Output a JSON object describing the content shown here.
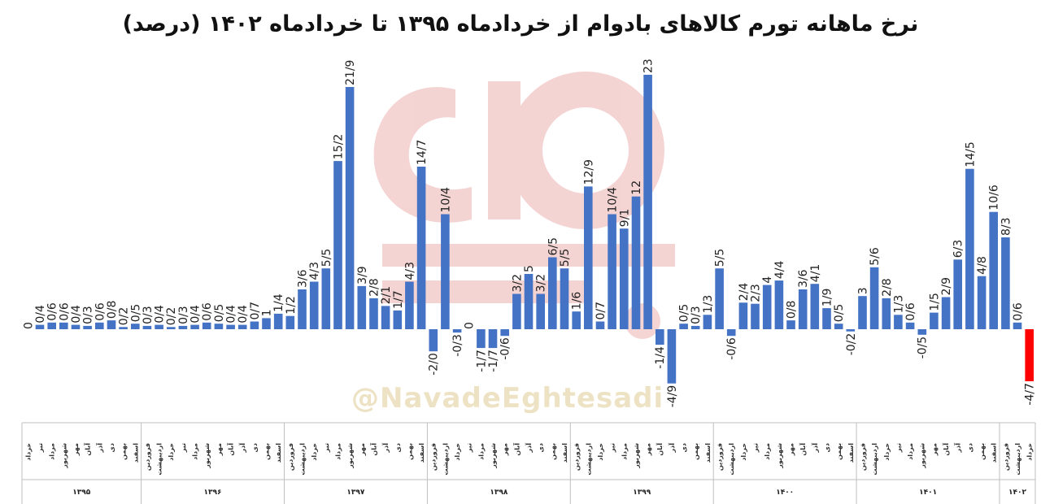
{
  "title": "نرخ ماهانه تورم کالاهای بادوام از خردادماه ۱۳۹۵ تا خردادماه ۱۴۰۲ (درصد)",
  "watermark": "@NavadeEghtesadi",
  "colors": {
    "positive": "#4472c4",
    "highlight": "#ff0000",
    "watermark": "#e8a0a0"
  },
  "chart_data": {
    "type": "bar",
    "title": "نرخ ماهانه تورم کالاهای بادوام از خردادماه ۱۳۹۵ تا خردادماه ۱۴۰۲ (درصد)",
    "xlabel": "",
    "ylabel": "",
    "ylim": [
      -5,
      23
    ],
    "grid": false,
    "legend": "none",
    "bars": [
      {
        "label": "0",
        "value": 0
      },
      {
        "label": "0/4",
        "value": 0.4
      },
      {
        "label": "0/6",
        "value": 0.6
      },
      {
        "label": "0/6",
        "value": 0.6
      },
      {
        "label": "0/4",
        "value": 0.4
      },
      {
        "label": "0/3",
        "value": 0.3
      },
      {
        "label": "0/6",
        "value": 0.6
      },
      {
        "label": "0/8",
        "value": 0.8
      },
      {
        "label": "0/2",
        "value": 0.2
      },
      {
        "label": "0/5",
        "value": 0.5
      },
      {
        "label": "0/3",
        "value": 0.3
      },
      {
        "label": "0/4",
        "value": 0.4
      },
      {
        "label": "0/2",
        "value": 0.2
      },
      {
        "label": "0/3",
        "value": 0.3
      },
      {
        "label": "0/4",
        "value": 0.4
      },
      {
        "label": "0/6",
        "value": 0.6
      },
      {
        "label": "0/5",
        "value": 0.5
      },
      {
        "label": "0/4",
        "value": 0.4
      },
      {
        "label": "0/4",
        "value": 0.4
      },
      {
        "label": "0/7",
        "value": 0.7
      },
      {
        "label": "1",
        "value": 1.0
      },
      {
        "label": "1/4",
        "value": 1.4
      },
      {
        "label": "1/2",
        "value": 1.2
      },
      {
        "label": "3/6",
        "value": 3.6
      },
      {
        "label": "4/3",
        "value": 4.3
      },
      {
        "label": "5/5",
        "value": 5.5
      },
      {
        "label": "15/2",
        "value": 15.2
      },
      {
        "label": "21/9",
        "value": 21.9
      },
      {
        "label": "3/9",
        "value": 3.9
      },
      {
        "label": "2/8",
        "value": 2.8
      },
      {
        "label": "2/1",
        "value": 2.1
      },
      {
        "label": "1/7",
        "value": 1.7
      },
      {
        "label": "4/3",
        "value": 4.3
      },
      {
        "label": "14/7",
        "value": 14.7
      },
      {
        "label": "-2/0",
        "value": -2.0
      },
      {
        "label": "10/4",
        "value": 10.4
      },
      {
        "label": "-0/3",
        "value": -0.3
      },
      {
        "label": "0",
        "value": 0
      },
      {
        "label": "-1/7",
        "value": -1.7
      },
      {
        "label": "-1/7",
        "value": -1.7
      },
      {
        "label": "-0/6",
        "value": -0.6
      },
      {
        "label": "3/2",
        "value": 3.2
      },
      {
        "label": "5",
        "value": 5.0
      },
      {
        "label": "3/2",
        "value": 3.2
      },
      {
        "label": "6/5",
        "value": 6.5
      },
      {
        "label": "5/5",
        "value": 5.5
      },
      {
        "label": "1/6",
        "value": 1.6
      },
      {
        "label": "12/9",
        "value": 12.9
      },
      {
        "label": "0/7",
        "value": 0.7
      },
      {
        "label": "10/4",
        "value": 10.4
      },
      {
        "label": "9/1",
        "value": 9.1
      },
      {
        "label": "12",
        "value": 12.0
      },
      {
        "label": "23",
        "value": 23.0
      },
      {
        "label": "-1/4",
        "value": -1.4
      },
      {
        "label": "-4/9",
        "value": -4.9
      },
      {
        "label": "0/5",
        "value": 0.5
      },
      {
        "label": "0/3",
        "value": 0.3
      },
      {
        "label": "1/3",
        "value": 1.3
      },
      {
        "label": "5/5",
        "value": 5.5
      },
      {
        "label": "-0/6",
        "value": -0.6
      },
      {
        "label": "2/4",
        "value": 2.4
      },
      {
        "label": "2/3",
        "value": 2.3
      },
      {
        "label": "4",
        "value": 4.0
      },
      {
        "label": "4/4",
        "value": 4.4
      },
      {
        "label": "0/8",
        "value": 0.8
      },
      {
        "label": "3/6",
        "value": 3.6
      },
      {
        "label": "4/1",
        "value": 4.1
      },
      {
        "label": "1/9",
        "value": 1.9
      },
      {
        "label": "0/5",
        "value": 0.5
      },
      {
        "label": "-0/2",
        "value": -0.2
      },
      {
        "label": "3",
        "value": 3.0
      },
      {
        "label": "5/6",
        "value": 5.6
      },
      {
        "label": "2/8",
        "value": 2.8
      },
      {
        "label": "1/3",
        "value": 1.3
      },
      {
        "label": "0/6",
        "value": 0.6
      },
      {
        "label": "-0/5",
        "value": -0.5
      },
      {
        "label": "1/5",
        "value": 1.5
      },
      {
        "label": "2/9",
        "value": 2.9
      },
      {
        "label": "6/3",
        "value": 6.3
      },
      {
        "label": "14/5",
        "value": 14.5
      },
      {
        "label": "4/8",
        "value": 4.8
      },
      {
        "label": "10/6",
        "value": 10.6
      },
      {
        "label": "8/3",
        "value": 8.3
      },
      {
        "label": "0/6",
        "value": 0.6
      },
      {
        "label": "-4/7",
        "value": -4.7,
        "highlight": true
      }
    ],
    "years": [
      {
        "label": "۱۳۹۵",
        "months": [
          "خرداد",
          "تیر",
          "مرداد",
          "شهریور",
          "مهر",
          "آبان",
          "آذر",
          "دی",
          "بهمن",
          "اسفند"
        ]
      },
      {
        "label": "۱۳۹۶",
        "months": [
          "فروردین",
          "اردیبهشت",
          "خرداد",
          "تیر",
          "مرداد",
          "شهریور",
          "مهر",
          "آبان",
          "آذر",
          "دی",
          "بهمن",
          "اسفند"
        ]
      },
      {
        "label": "۱۳۹۷",
        "months": [
          "فروردین",
          "اردیبهشت",
          "خرداد",
          "تیر",
          "مرداد",
          "شهریور",
          "مهر",
          "آبان",
          "آذر",
          "دی",
          "بهمن",
          "اسفند"
        ]
      },
      {
        "label": "۱۳۹۸",
        "months": [
          "فروردین",
          "اردیبهشت",
          "خرداد",
          "تیر",
          "مرداد",
          "شهریور",
          "مهر",
          "آبان",
          "آذر",
          "دی",
          "بهمن",
          "اسفند"
        ]
      },
      {
        "label": "۱۳۹۹",
        "months": [
          "فروردین",
          "اردیبهشت",
          "خرداد",
          "تیر",
          "مرداد",
          "شهریور",
          "مهر",
          "آبان",
          "آذر",
          "دی",
          "بهمن",
          "اسفند"
        ]
      },
      {
        "label": "۱۴۰۰",
        "months": [
          "فروردین",
          "اردیبهشت",
          "خرداد",
          "تیر",
          "مرداد",
          "شهریور",
          "مهر",
          "آبان",
          "آذر",
          "دی",
          "بهمن",
          "اسفند"
        ]
      },
      {
        "label": "۱۴۰۱",
        "months": [
          "فروردین",
          "اردیبهشت",
          "خرداد",
          "تیر",
          "مرداد",
          "شهریور",
          "مهر",
          "آبان",
          "آذر",
          "دی",
          "بهمن",
          "اسفند"
        ]
      },
      {
        "label": "۱۴۰۲",
        "months": [
          "فروردین",
          "اردیبهشت",
          "خرداد"
        ]
      }
    ]
  }
}
